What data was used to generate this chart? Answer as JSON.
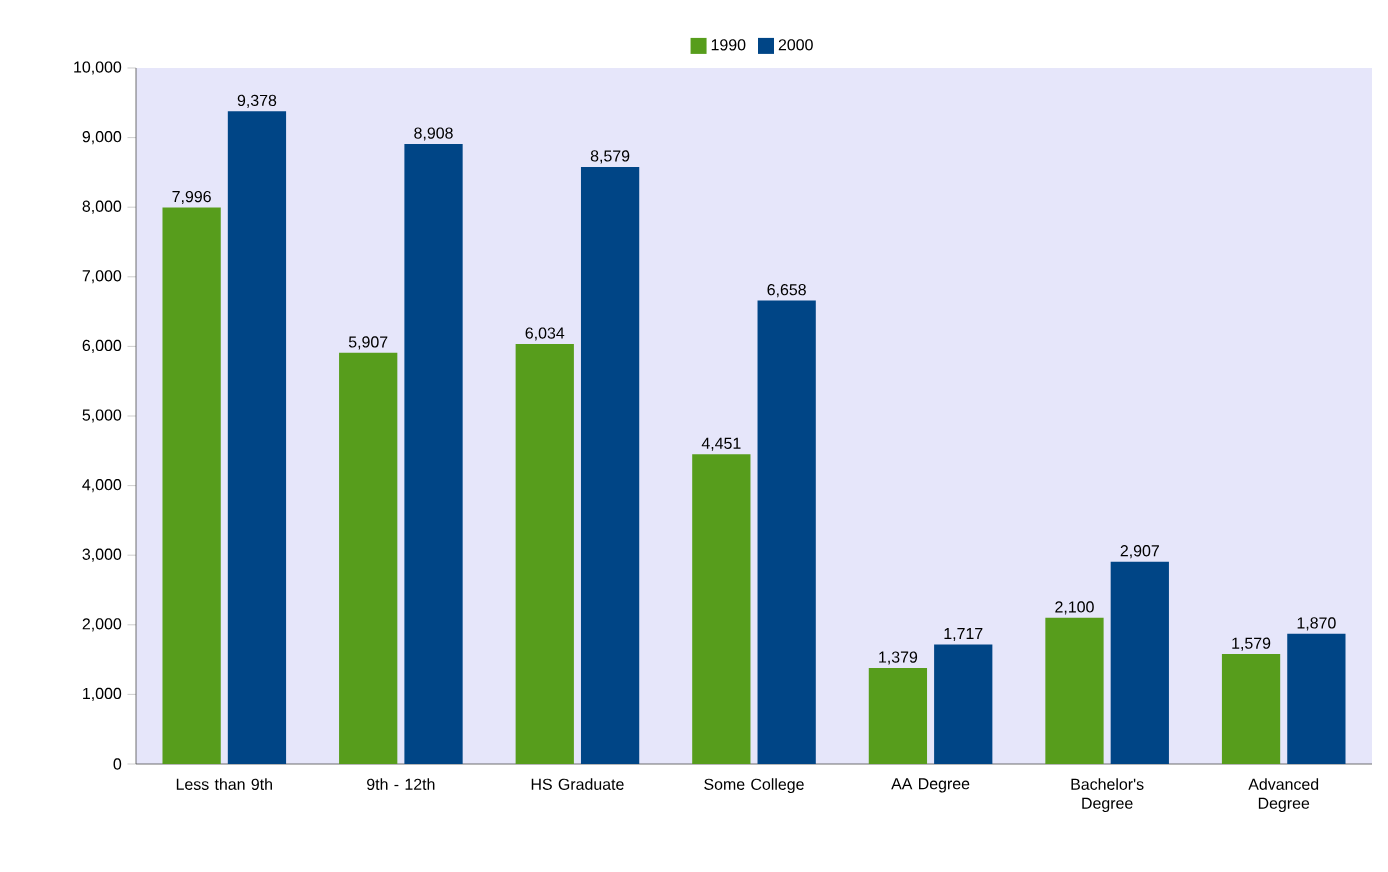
{
  "chart_data": {
    "type": "bar",
    "categories": [
      "Less than 9th",
      "9th - 12th",
      "HS Graduate",
      "Some College",
      "AA Degree",
      "Bachelor's Degree",
      "Advanced Degree"
    ],
    "series": [
      {
        "name": "1990",
        "color": "#579d1c",
        "values": [
          7996,
          5907,
          6034,
          4451,
          1379,
          2100,
          1579
        ],
        "value_labels": [
          "7,996",
          "5,907",
          "6,034",
          "4,451",
          "1,379",
          "2,100",
          "1,579"
        ]
      },
      {
        "name": "2000",
        "color": "#004586",
        "values": [
          9378,
          8908,
          8579,
          6658,
          1717,
          2907,
          1870
        ],
        "value_labels": [
          "9,378",
          "8,908",
          "8,579",
          "6,658",
          "1,717",
          "2,907",
          "1,870"
        ]
      }
    ],
    "ylim": [
      0,
      10000
    ],
    "yticks": [
      0,
      {
        "value": 1000,
        "label": "1,000"
      },
      {
        "value": 2000,
        "label": "2,000"
      },
      {
        "value": 3000,
        "label": "3,000"
      },
      {
        "value": 4000,
        "label": "4,000"
      },
      {
        "value": 5000,
        "label": "5,000"
      },
      {
        "value": 6000,
        "label": "6,000"
      },
      {
        "value": 7000,
        "label": "7,000"
      },
      {
        "value": 8000,
        "label": "8,000"
      },
      {
        "value": 9000,
        "label": "9,000"
      },
      {
        "value": 10000,
        "label": "10,000"
      }
    ],
    "grid": false,
    "legend": "top"
  }
}
